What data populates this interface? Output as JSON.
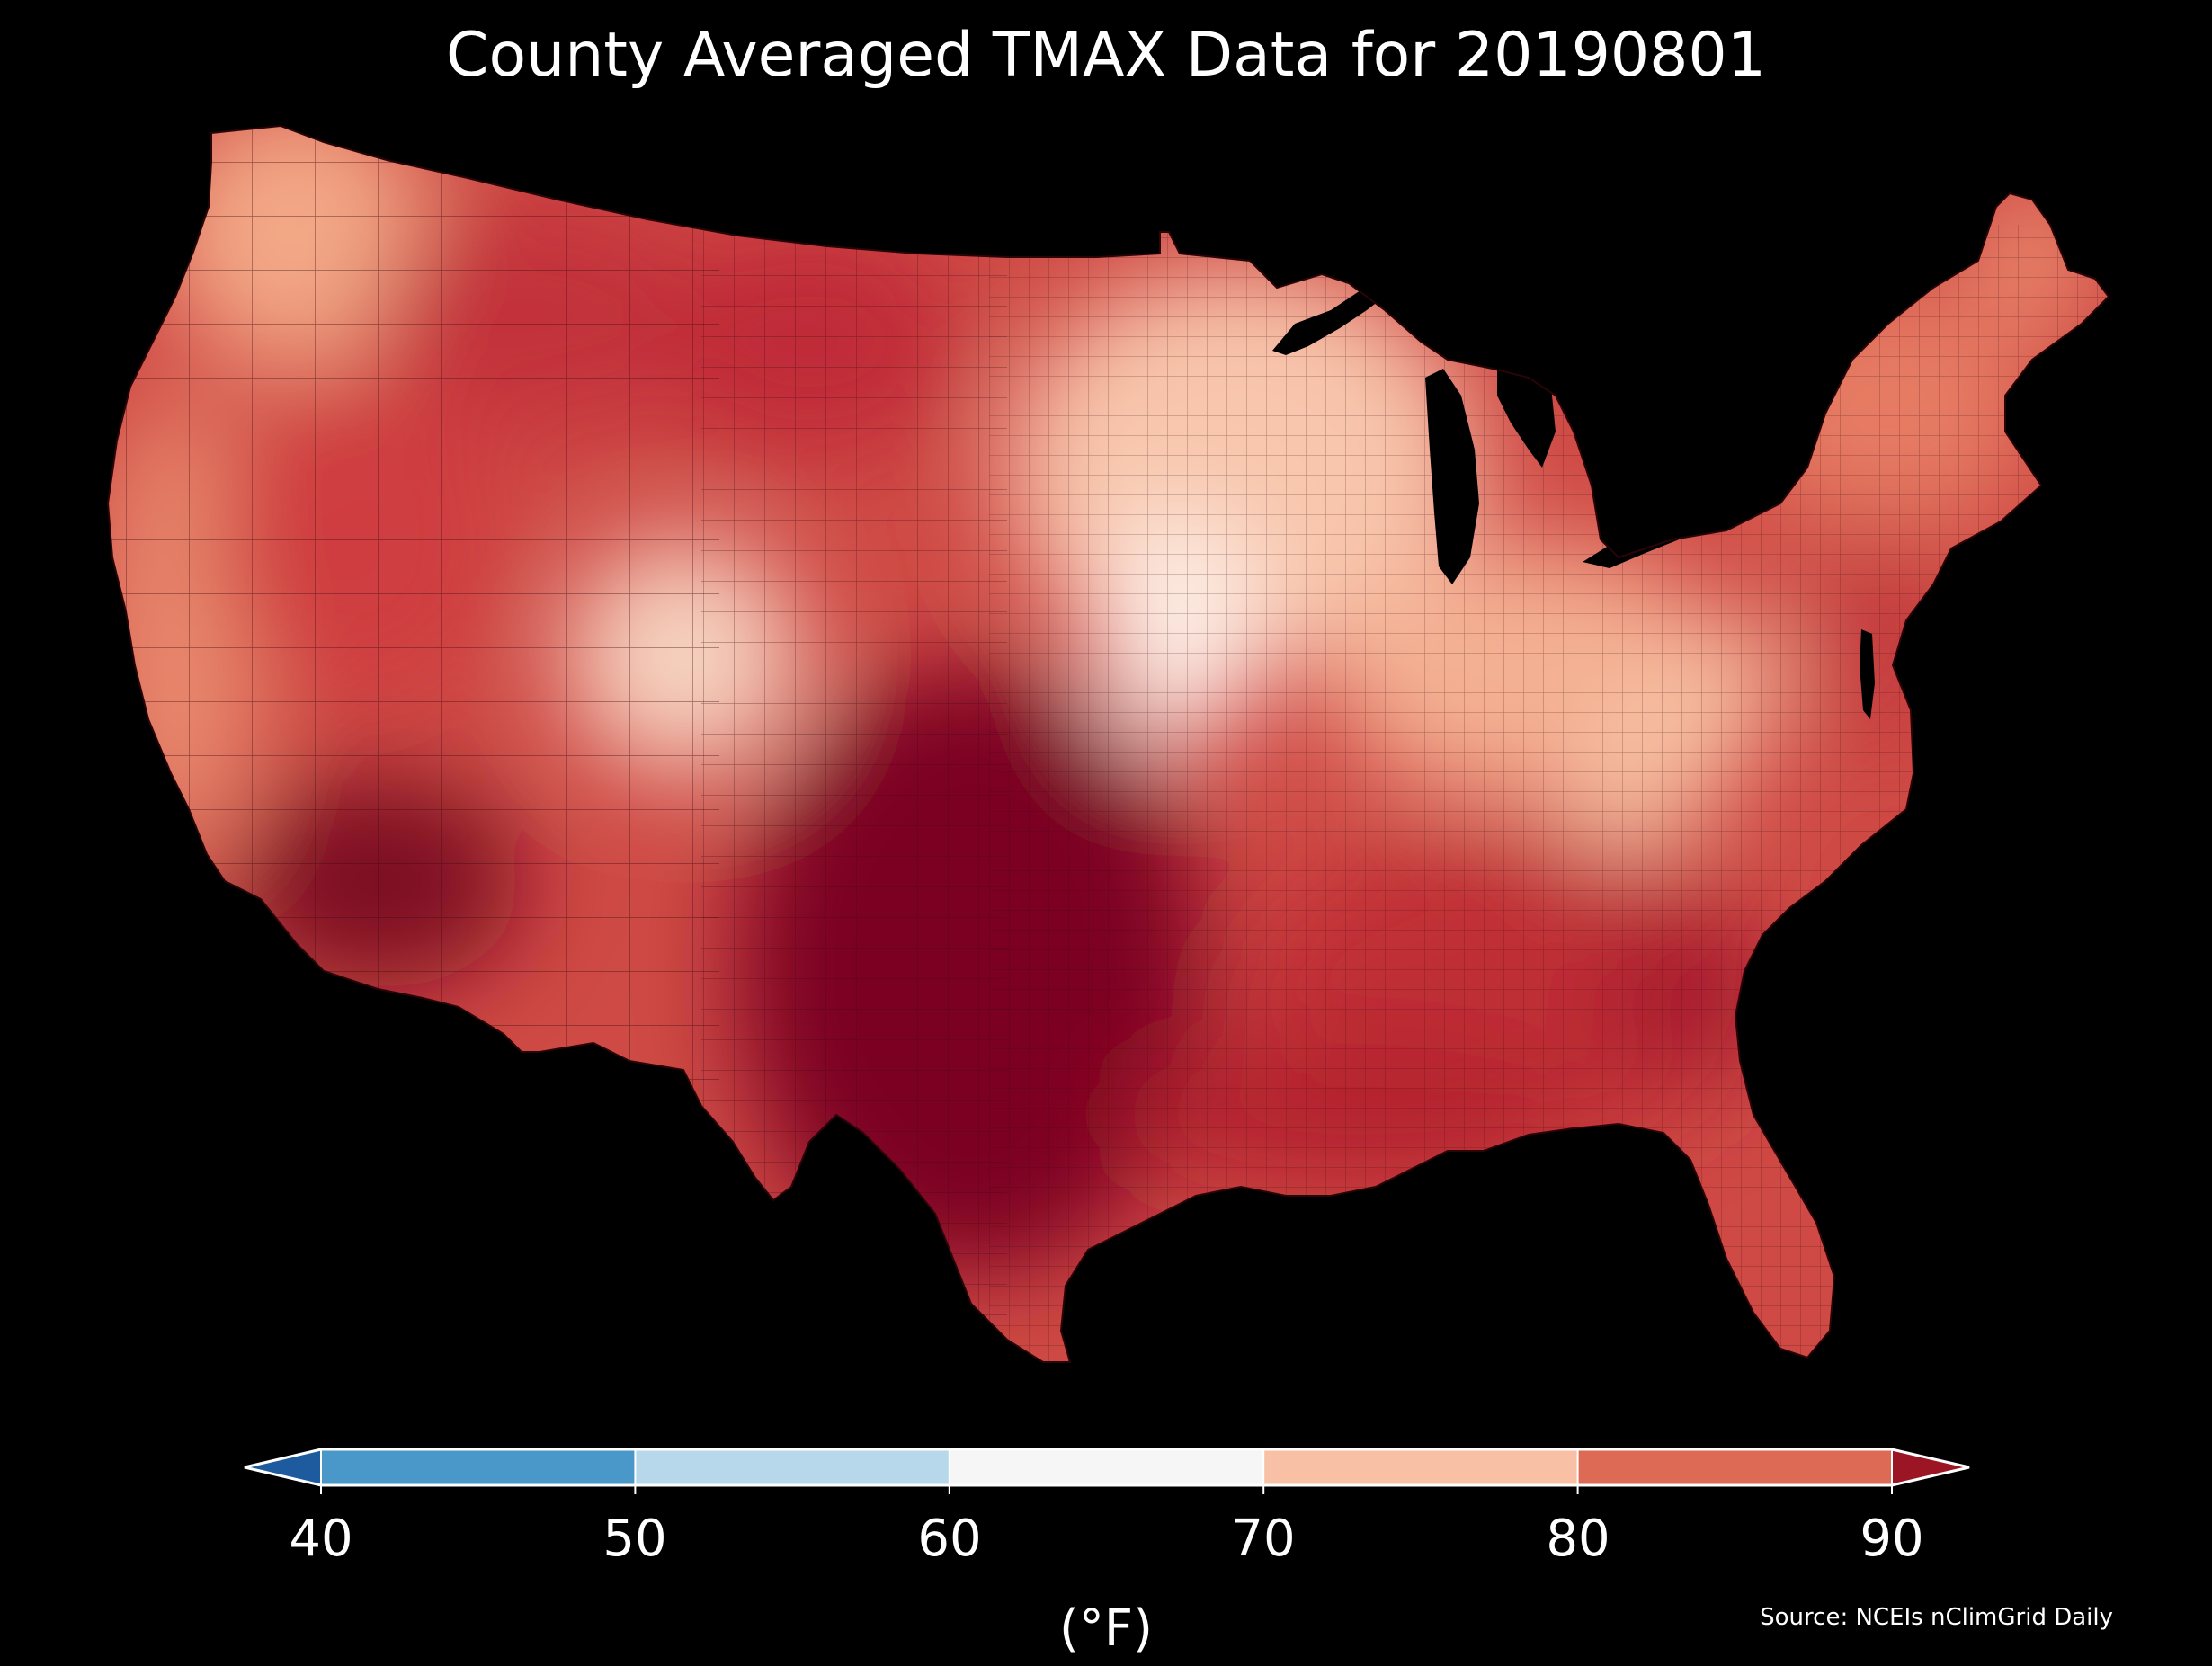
{
  "title": "County Averaged TMAX Data for 20190801",
  "source": "Source: NCEIs nClimGrid Daily",
  "colorbar": {
    "unit": "(°F)",
    "ticks": [
      "40",
      "50",
      "60",
      "70",
      "80",
      "90"
    ],
    "bins": [
      {
        "min": 40,
        "max": 50,
        "color": "#4a97c9"
      },
      {
        "min": 50,
        "max": 60,
        "color": "#b7d8ea"
      },
      {
        "min": 60,
        "max": 70,
        "color": "#f6f6f6"
      },
      {
        "min": 70,
        "max": 80,
        "color": "#f8c1a6"
      },
      {
        "min": 80,
        "max": 90,
        "color": "#dc6a55"
      }
    ],
    "under_color": "#1d5a9e",
    "over_color": "#9b1525",
    "extend": "both"
  },
  "map": {
    "region": "Contiguous United States",
    "regions": [
      {
        "name": "pacific-northwest",
        "color": "#f3a886"
      },
      {
        "name": "california-coast",
        "color": "#e98b6e"
      },
      {
        "name": "great-basin",
        "color": "#cf3d3f"
      },
      {
        "name": "desert-southwest",
        "color": "#7d0a22"
      },
      {
        "name": "northern-rockies",
        "color": "#c2303a"
      },
      {
        "name": "colorado-rockies",
        "color": "#f6d2bf"
      },
      {
        "name": "northern-plains",
        "color": "#c02a38"
      },
      {
        "name": "southern-plains",
        "color": "#7b0420"
      },
      {
        "name": "upper-midwest",
        "color": "#f8c6ac"
      },
      {
        "name": "iowa-core",
        "color": "#fdf0e8"
      },
      {
        "name": "ohio-valley",
        "color": "#f4b093"
      },
      {
        "name": "appalachians",
        "color": "#f7c2a4"
      },
      {
        "name": "southeast",
        "color": "#c02d35"
      },
      {
        "name": "georgia-core",
        "color": "#a61b2d"
      },
      {
        "name": "gulf-coast",
        "color": "#b3212f"
      },
      {
        "name": "northeast",
        "color": "#e67b63"
      },
      {
        "name": "mid-atlantic",
        "color": "#c23a3c"
      },
      {
        "name": "maine",
        "color": "#ee9574"
      }
    ],
    "water_color": "#000000"
  }
}
